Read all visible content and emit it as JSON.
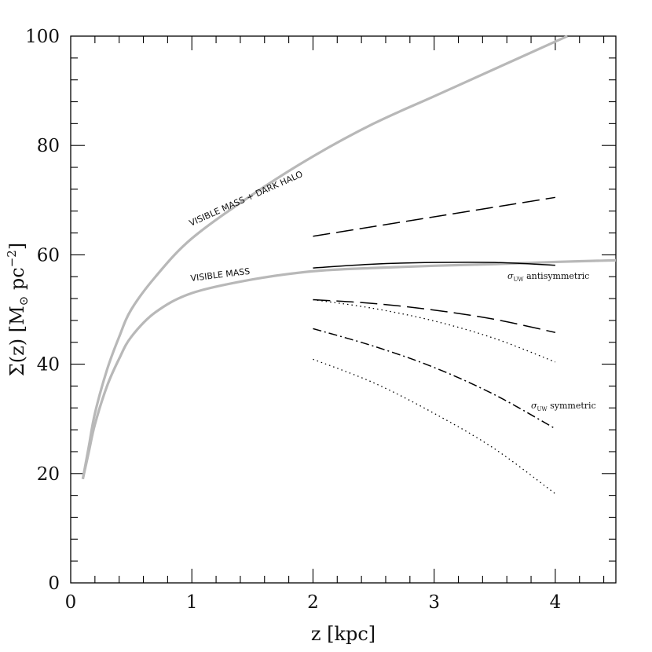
{
  "chart_data": {
    "type": "line",
    "xlabel": "z [kpc]",
    "ylabel": "Σ(z) [M⊙ pc⁻²]",
    "ylabel_parts": {
      "main": "Σ(z) [M",
      "sub": "⊙",
      "mid": " pc",
      "sup": "−2",
      "end": "]"
    },
    "xlim": [
      0,
      4.5
    ],
    "ylim": [
      0,
      100
    ],
    "x_ticks": [
      "0",
      "1",
      "2",
      "3",
      "4"
    ],
    "y_ticks": [
      "0",
      "20",
      "40",
      "60",
      "80",
      "100"
    ],
    "curve_labels": {
      "visible_halo": "VISIBLE MASS + DARK HALO",
      "visible": "VISIBLE MASS"
    },
    "annotations": {
      "antisym": {
        "sym": "σ",
        "sub": "UW",
        "text": " antisymmetric"
      },
      "sym": {
        "sym": "σ",
        "sub": "UW",
        "text": " symmetric"
      }
    },
    "series": [
      {
        "style": "gray",
        "x": [
          0.1,
          0.15,
          0.2,
          0.3,
          0.4,
          0.5,
          0.7,
          1.0,
          1.5,
          2.0,
          2.5,
          3.0,
          3.5,
          4.0,
          4.1
        ],
        "values": [
          19,
          25,
          31,
          39,
          45,
          50,
          56,
          63,
          71,
          78,
          84,
          89,
          94,
          99,
          100
        ]
      },
      {
        "style": "gray",
        "x": [
          0.1,
          0.15,
          0.2,
          0.3,
          0.4,
          0.5,
          0.7,
          1.0,
          1.5,
          2.0,
          2.5,
          3.0,
          3.5,
          4.0,
          4.5
        ],
        "values": [
          19,
          24,
          29,
          36,
          41,
          45,
          49.5,
          53,
          55.5,
          57,
          57.6,
          58,
          58.3,
          58.7,
          59
        ]
      },
      {
        "style": "longdash",
        "x": [
          2.0,
          4.0
        ],
        "values": [
          63.4,
          70.5
        ]
      },
      {
        "style": "solid",
        "x": [
          2.0,
          2.5,
          3.0,
          3.5,
          4.0
        ],
        "values": [
          57.6,
          58.3,
          58.6,
          58.6,
          58.1
        ]
      },
      {
        "style": "longdash",
        "x": [
          2.0,
          2.5,
          3.0,
          3.5,
          4.0
        ],
        "values": [
          51.8,
          51.1,
          49.9,
          48.2,
          45.8
        ]
      },
      {
        "style": "dotted",
        "x": [
          2.0,
          2.5,
          3.0,
          3.5,
          4.0
        ],
        "values": [
          51.8,
          50.2,
          47.9,
          44.7,
          40.4
        ]
      },
      {
        "style": "dashdot",
        "x": [
          2.0,
          2.5,
          3.0,
          3.5,
          4.0
        ],
        "values": [
          46.5,
          43.3,
          39.4,
          34.4,
          28.2
        ]
      },
      {
        "style": "dotted",
        "x": [
          2.0,
          2.5,
          3.0,
          3.5,
          4.0
        ],
        "values": [
          40.9,
          36.6,
          31.0,
          24.5,
          16.3
        ]
      }
    ]
  }
}
